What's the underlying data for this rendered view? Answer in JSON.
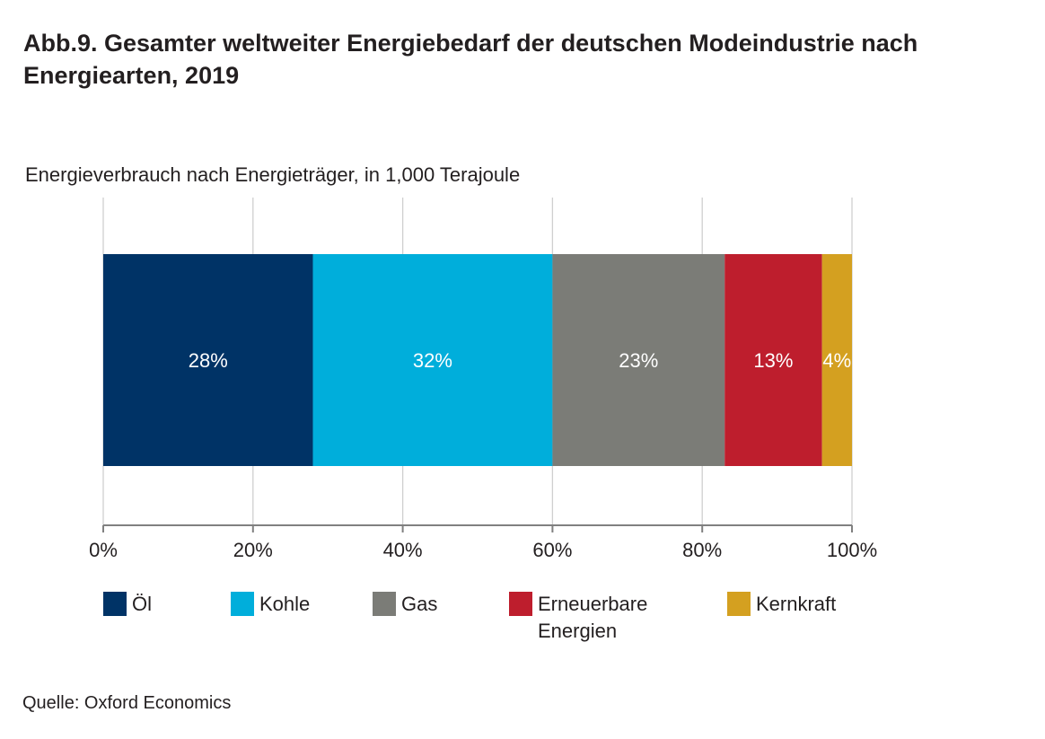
{
  "chart_data": {
    "type": "bar",
    "orientation": "horizontal-stacked-100",
    "title": "Abb.9. Gesamter weltweiter Energiebedarf der deutschen Modeindustrie nach Energiearten, 2019",
    "subtitle": "Energieverbrauch nach Energieträger, in 1,000 Terajoule",
    "source": "Quelle: Oxford Economics",
    "xlim": [
      0,
      100
    ],
    "xticks": [
      "0%",
      "20%",
      "40%",
      "60%",
      "80%",
      "100%"
    ],
    "grid": true,
    "legend_position": "bottom",
    "series": [
      {
        "name": "Öl",
        "value": 28,
        "label": "28%",
        "color": "#003366"
      },
      {
        "name": "Kohle",
        "value": 32,
        "label": "32%",
        "color": "#00aedb"
      },
      {
        "name": "Gas",
        "value": 23,
        "label": "23%",
        "color": "#7b7c77"
      },
      {
        "name": "Erneuerbare Energien",
        "value": 13,
        "label": "13%",
        "color": "#be1e2d"
      },
      {
        "name": "Kernkraft",
        "value": 4,
        "label": "4%",
        "color": "#d4a020"
      }
    ]
  }
}
